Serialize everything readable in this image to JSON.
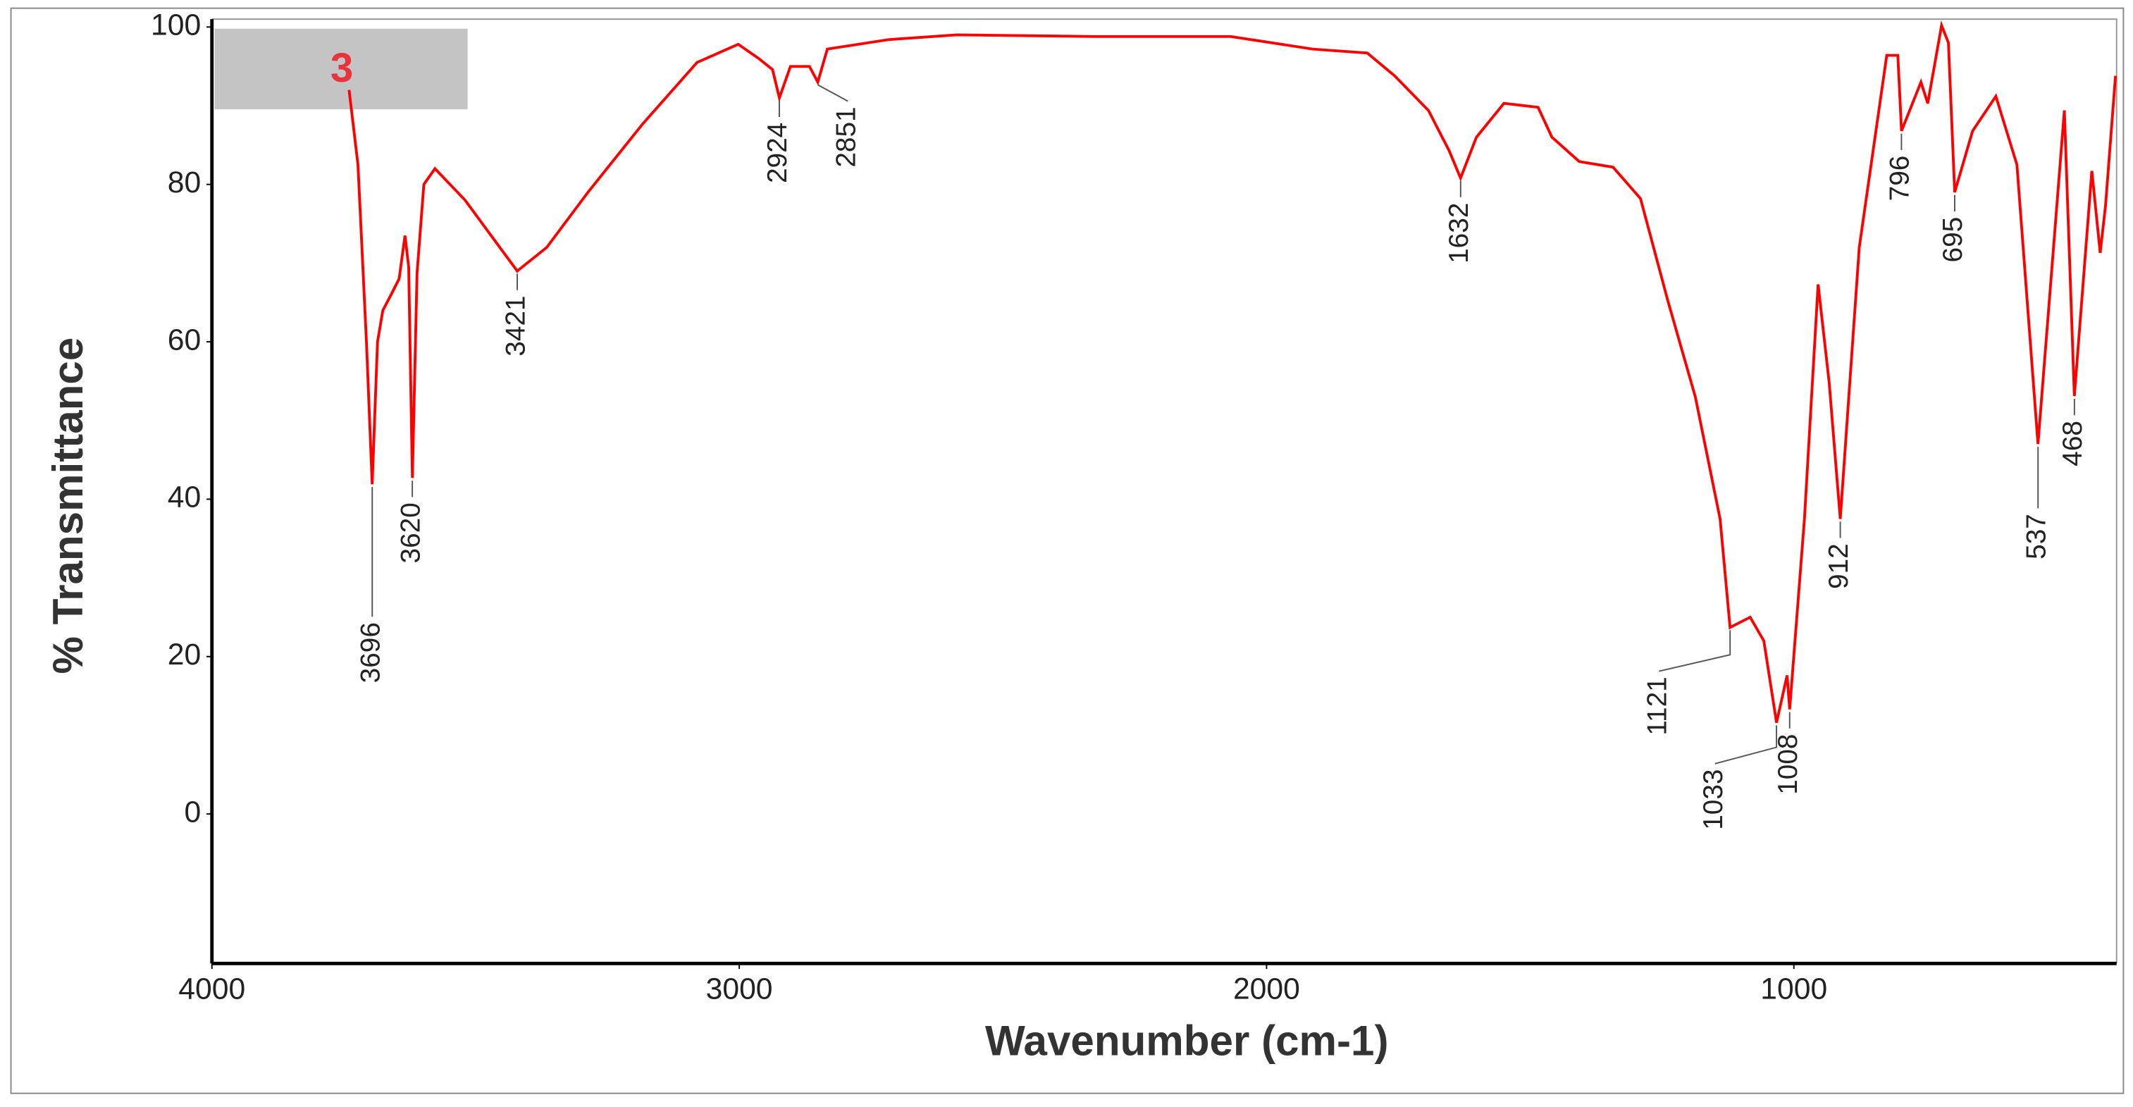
{
  "chart_data": {
    "type": "line",
    "x_label": "Wavenumber (cm-1)",
    "y_label": "% Transmittance",
    "sample_label": "3",
    "color": "#ff0000",
    "x": [
      3740,
      3723,
      3707,
      3696,
      3686,
      3676,
      3660,
      3645,
      3634,
      3627,
      3620,
      3611,
      3598,
      3577,
      3520,
      3443,
      3421,
      3365,
      3287,
      3183,
      3080,
      3002,
      2963,
      2937,
      2924,
      2903,
      2867,
      2851,
      2833,
      2717,
      2587,
      2328,
      2068,
      1913,
      1809,
      1757,
      1693,
      1654,
      1632,
      1602,
      1550,
      1485,
      1459,
      1407,
      1343,
      1291,
      1239,
      1187,
      1140,
      1121,
      1083,
      1057,
      1033,
      1013,
      1008,
      980,
      954,
      933,
      912,
      876,
      824,
      803,
      796,
      759,
      746,
      720,
      707,
      695,
      661,
      617,
      577,
      537,
      487,
      468,
      435,
      419,
      409,
      390
    ],
    "values": [
      92,
      82.5,
      60,
      41.9,
      60,
      64,
      66,
      68,
      73.5,
      69.5,
      42.7,
      68.7,
      80,
      82,
      78,
      71,
      69,
      72,
      79,
      87.7,
      95.5,
      97.8,
      96,
      94.6,
      91,
      95,
      95,
      93,
      97.2,
      98.4,
      99,
      98.8,
      98.8,
      97.2,
      96.7,
      93.8,
      89.4,
      84.3,
      80.8,
      86,
      90.3,
      89.8,
      86,
      82.9,
      82.2,
      78.2,
      65.2,
      53,
      37.5,
      23.7,
      25,
      22,
      11.6,
      17.6,
      13.3,
      37.5,
      67.3,
      54.8,
      37.5,
      72,
      96.4,
      96.4,
      86.8,
      93,
      90.3,
      100.2,
      98,
      79,
      86.8,
      91.2,
      82.5,
      47,
      89.4,
      53.1,
      81.7,
      71.3,
      77.3,
      93.8
    ],
    "peaks": [
      3696,
      3620,
      3421,
      2924,
      2851,
      1632,
      1121,
      1033,
      1008,
      912,
      796,
      695,
      537,
      468
    ],
    "xlim": [
      4000,
      388
    ],
    "xticks": [
      4000,
      3000,
      2000,
      1000
    ],
    "ylim": [
      -19,
      101
    ],
    "yticks": [
      0,
      20,
      40,
      60,
      80,
      100
    ],
    "grid": false
  }
}
